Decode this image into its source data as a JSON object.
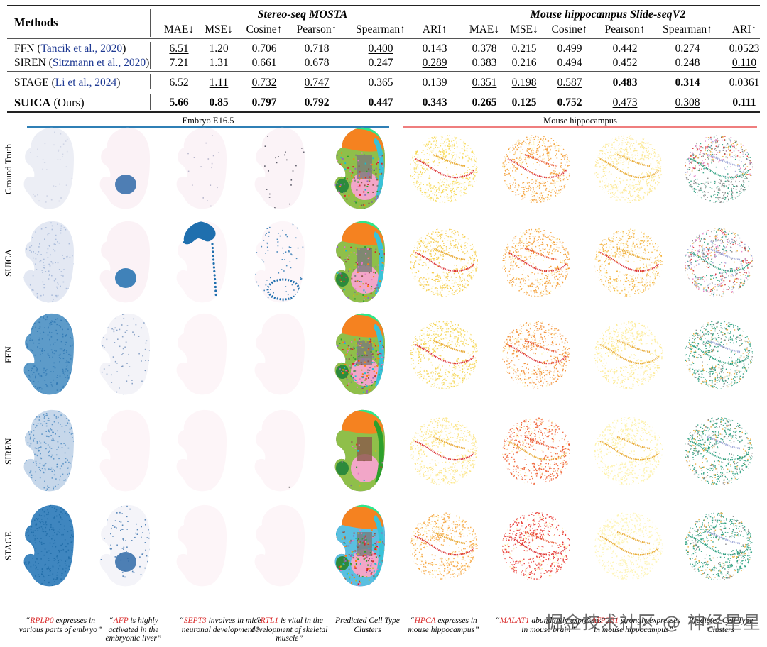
{
  "table": {
    "methods_header": "Methods",
    "groups": [
      {
        "title": "Stereo-seq MOSTA",
        "columns": [
          "MAE↓",
          "MSE↓",
          "Cosine↑",
          "Pearson↑",
          "Spearman↑",
          "ARI↑"
        ]
      },
      {
        "title": "Mouse hippocampus Slide-seqV2",
        "columns": [
          "MAE↓",
          "MSE↓",
          "Cosine↑",
          "Pearson↑",
          "Spearman↑",
          "ARI↑"
        ]
      }
    ],
    "rows": [
      {
        "method": "FFN",
        "citation": "(Tancik et al., 2020)",
        "citation_text": "Tancik et al., 2020",
        "values": [
          "6.51",
          "1.20",
          "0.706",
          "0.718",
          "0.400",
          "0.143",
          "0.378",
          "0.215",
          "0.499",
          "0.442",
          "0.274",
          "0.0523"
        ],
        "underline": [
          true,
          false,
          false,
          false,
          true,
          false,
          false,
          false,
          false,
          false,
          false,
          false
        ],
        "bold": [
          false,
          false,
          false,
          false,
          false,
          false,
          false,
          false,
          false,
          false,
          false,
          false
        ]
      },
      {
        "method": "SIREN",
        "citation_text": "Sitzmann et al., 2020",
        "values": [
          "7.21",
          "1.31",
          "0.661",
          "0.678",
          "0.247",
          "0.289",
          "0.383",
          "0.216",
          "0.494",
          "0.452",
          "0.248",
          "0.110"
        ],
        "underline": [
          false,
          false,
          false,
          false,
          false,
          true,
          false,
          false,
          false,
          false,
          false,
          true
        ],
        "bold": [
          false,
          false,
          false,
          false,
          false,
          false,
          false,
          false,
          false,
          false,
          false,
          false
        ]
      },
      {
        "method": "STAGE",
        "citation_text": "Li et al., 2024",
        "values": [
          "6.52",
          "1.11",
          "0.732",
          "0.747",
          "0.365",
          "0.139",
          "0.351",
          "0.198",
          "0.587",
          "0.483",
          "0.314",
          "0.0361"
        ],
        "underline": [
          false,
          true,
          true,
          true,
          false,
          false,
          true,
          true,
          true,
          false,
          false,
          false
        ],
        "bold": [
          false,
          false,
          false,
          false,
          false,
          false,
          false,
          false,
          false,
          true,
          true,
          false
        ]
      },
      {
        "method": "SUICA",
        "citation_text": "Ours",
        "values": [
          "5.66",
          "0.85",
          "0.797",
          "0.792",
          "0.447",
          "0.343",
          "0.265",
          "0.125",
          "0.752",
          "0.473",
          "0.308",
          "0.111"
        ],
        "underline": [
          false,
          false,
          false,
          false,
          false,
          false,
          false,
          false,
          false,
          true,
          true,
          false
        ],
        "bold": [
          true,
          true,
          true,
          true,
          true,
          true,
          true,
          true,
          true,
          false,
          false,
          true
        ]
      }
    ]
  },
  "figure": {
    "sections": [
      {
        "label": "Embryo E16.5",
        "color": "#2f7fb5"
      },
      {
        "label": "Mouse hippocampus",
        "color": "#ef7e7e"
      }
    ],
    "row_labels": [
      "Ground Truth",
      "SUICA",
      "FFN",
      "SIREN",
      "STAGE"
    ],
    "captions": [
      {
        "gene": "RPLP0",
        "text": " expresses in various parts of embryo”"
      },
      {
        "gene": "AFP",
        "text": " is highly activated in the embryonic liver”"
      },
      {
        "gene": "SEPT3",
        "text": " involves in mice neuronal development”"
      },
      {
        "gene": "RTL1",
        "text": " is vital in the development of skeletal muscle”"
      },
      {
        "gene": "",
        "text": "Predicted Cell Type Clusters"
      },
      {
        "gene": "HPCA",
        "text": " expresses in mouse hippocampus”"
      },
      {
        "gene": "MALAT1",
        "text": " abundantly expresses in mouse brain”"
      },
      {
        "gene": "ATP2B1",
        "text": " strongly expresses in mouse hippocampus”"
      },
      {
        "gene": "",
        "text": "Predicted Cell Type Clusters"
      }
    ],
    "watermark": "掘金技术社区 @ 神经星星",
    "colors": {
      "embryo_expression_dark": "#1f6fae",
      "embryo_expression_light": "#dfe4f0",
      "hippo_yellow": "#f7d64a",
      "hippo_orange": "#f39a2e",
      "hippo_red": "#d9262a",
      "cluster_green": "#1e9a78",
      "cluster_orange": "#f58220",
      "cluster_pink": "#f2a6c8"
    }
  }
}
